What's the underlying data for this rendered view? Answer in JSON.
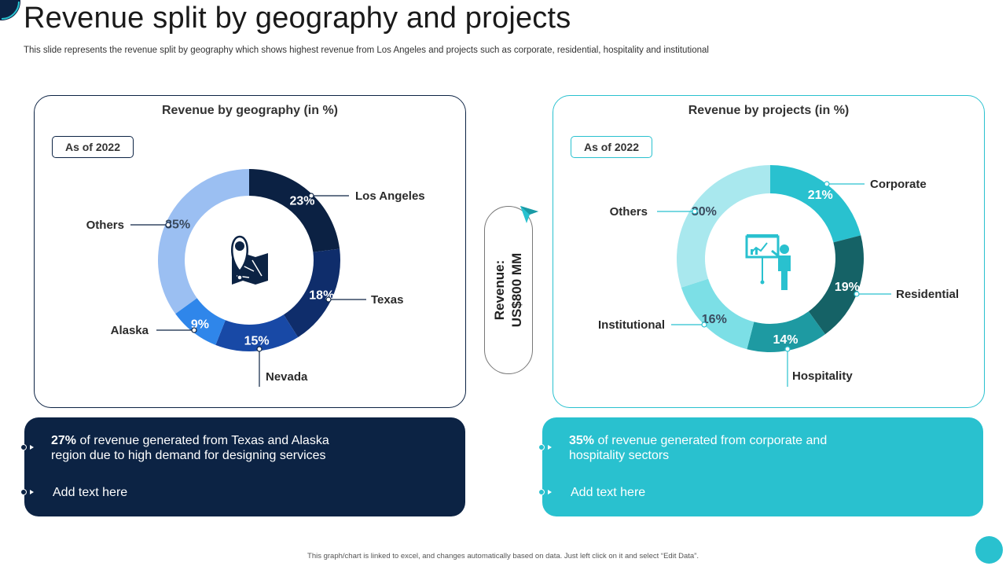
{
  "title": "Revenue split by geography and projects",
  "subtitle": "This slide represents the revenue split by geography which shows highest revenue from Los Angeles and projects such as corporate, residential, hospitality and institutional",
  "center_label": {
    "line1": "Revenue:",
    "line2": "US$800 MM"
  },
  "chart_data": [
    {
      "type": "pie",
      "title": "Revenue by geography (in %)",
      "badge": "As of 2022",
      "categories": [
        "Los Angeles",
        "Texas",
        "Nevada",
        "Alaska",
        "Others"
      ],
      "values": [
        23,
        18,
        15,
        9,
        35
      ],
      "value_labels": [
        "23%",
        "18%",
        "15%",
        "9%",
        "35%"
      ],
      "colors": [
        "#0b2143",
        "#0f2d6b",
        "#1849a6",
        "#2f86ea",
        "#9bbff2"
      ],
      "label_colors": [
        "#ffffff",
        "#ffffff",
        "#ffffff",
        "#ffffff",
        "#3a4a5e"
      ],
      "legend": "callouts",
      "center_icon": "map-pin-icon"
    },
    {
      "type": "pie",
      "title": "Revenue by projects (in %)",
      "badge": "As of 2022",
      "categories": [
        "Corporate",
        "Residential",
        "Hospitality",
        "Institutional",
        "Others"
      ],
      "values": [
        21,
        19,
        14,
        16,
        30
      ],
      "value_labels": [
        "21%",
        "19%",
        "14%",
        "16%",
        "30%"
      ],
      "colors": [
        "#29c1cf",
        "#156266",
        "#1e9aa2",
        "#7cdfe6",
        "#a9e8ee"
      ],
      "label_colors": [
        "#ffffff",
        "#ffffff",
        "#ffffff",
        "#3a4a5e",
        "#3a4a5e"
      ],
      "legend": "callouts",
      "center_icon": "presentation-icon"
    }
  ],
  "boxes": [
    {
      "highlight": "27%",
      "text": " of revenue  generated from Texas and Alaska region due to high demand for designing services",
      "add_text": "Add text here",
      "color": "#0c2344"
    },
    {
      "highlight": "35%",
      "text": " of revenue  generated from corporate and hospitality sectors",
      "add_text": "Add text here",
      "color": "#29c1cf"
    }
  ],
  "footer": "This graph/chart is linked to excel, and changes automatically based on data. Just left click on it and select “Edit Data”."
}
